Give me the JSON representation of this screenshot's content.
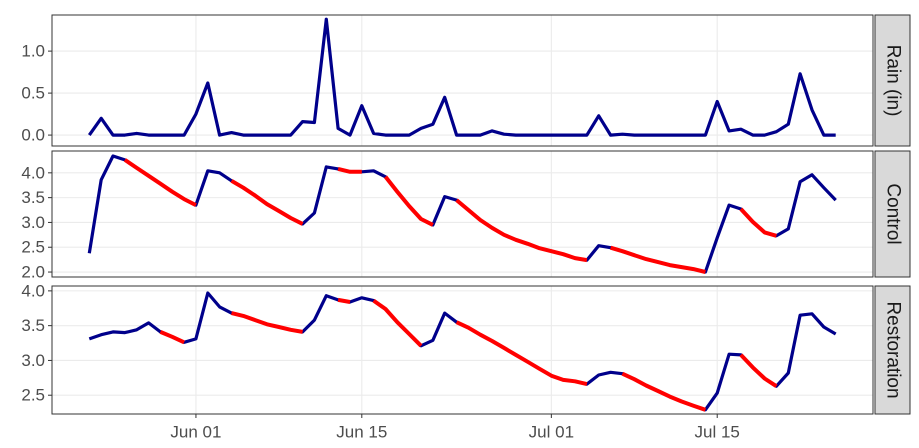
{
  "chart_data": {
    "type": "line",
    "categories": [
      "May 23",
      "May 24",
      "May 25",
      "May 26",
      "May 27",
      "May 28",
      "May 29",
      "May 30",
      "May 31",
      "Jun 01",
      "Jun 02",
      "Jun 03",
      "Jun 04",
      "Jun 05",
      "Jun 06",
      "Jun 07",
      "Jun 08",
      "Jun 09",
      "Jun 10",
      "Jun 11",
      "Jun 12",
      "Jun 13",
      "Jun 14",
      "Jun 15",
      "Jun 16",
      "Jun 17",
      "Jun 18",
      "Jun 19",
      "Jun 20",
      "Jun 21",
      "Jun 22",
      "Jun 23",
      "Jun 24",
      "Jun 25",
      "Jun 26",
      "Jun 27",
      "Jun 28",
      "Jun 29",
      "Jun 30",
      "Jul 01",
      "Jul 02",
      "Jul 03",
      "Jul 04",
      "Jul 05",
      "Jul 06",
      "Jul 07",
      "Jul 08",
      "Jul 09",
      "Jul 10",
      "Jul 11",
      "Jul 12",
      "Jul 13",
      "Jul 14",
      "Jul 15",
      "Jul 16",
      "Jul 17",
      "Jul 18",
      "Jul 19",
      "Jul 20",
      "Jul 21",
      "Jul 22",
      "Jul 23",
      "Jul 24",
      "Jul 25"
    ],
    "xticks": [
      "Jun 01",
      "Jun 15",
      "Jul 01",
      "Jul 15"
    ],
    "grid": true,
    "panels": [
      {
        "label": "Rain (in)",
        "ylim": [
          -0.13,
          1.43
        ],
        "yticks": [
          {
            "value": 0,
            "label": "0.0"
          },
          {
            "value": 0.5,
            "label": "0.5"
          },
          {
            "value": 1,
            "label": "1.0"
          }
        ],
        "series": [
          {
            "color": "#00008b",
            "values": [
              0,
              0.2,
              0,
              0,
              0.02,
              0,
              0,
              0,
              0,
              0.25,
              0.62,
              0,
              0.03,
              0,
              0,
              0,
              0,
              0,
              0.16,
              0.15,
              1.38,
              0.08,
              0,
              0.35,
              0.02,
              0,
              0,
              0,
              0.08,
              0.13,
              0.45,
              0,
              0,
              0,
              0.05,
              0.01,
              0,
              0,
              0,
              0,
              0,
              0,
              0,
              0.23,
              0,
              0.01,
              0,
              0,
              0,
              0,
              0,
              0,
              0,
              0.4,
              0.05,
              0.07,
              0,
              0,
              0.04,
              0.13,
              0.73,
              0.3,
              0,
              0
            ]
          }
        ]
      },
      {
        "label": "Control",
        "ylim": [
          1.9,
          4.44
        ],
        "yticks": [
          {
            "value": 2,
            "label": "2.0"
          },
          {
            "value": 2.5,
            "label": "2.5"
          },
          {
            "value": 3,
            "label": "3.0"
          },
          {
            "value": 3.5,
            "label": "3.5"
          },
          {
            "value": 4,
            "label": "4.0"
          }
        ],
        "series": [
          {
            "color": "#00008b",
            "values": [
              2.38,
              3.86,
              4.34,
              4.26,
              4.1,
              3.94,
              3.78,
              3.62,
              3.47,
              3.35,
              4.04,
              4.0,
              3.84,
              3.7,
              3.54,
              3.37,
              3.23,
              3.09,
              2.97,
              3.19,
              4.12,
              4.08,
              4.02,
              4.02,
              4.04,
              3.92,
              3.62,
              3.33,
              3.07,
              2.95,
              3.52,
              3.45,
              3.25,
              3.05,
              2.89,
              2.75,
              2.65,
              2.57,
              2.48,
              2.42,
              2.36,
              2.28,
              2.24,
              2.53,
              2.49,
              2.42,
              2.34,
              2.26,
              2.2,
              2.14,
              2.1,
              2.06,
              2.0,
              2.69,
              3.35,
              3.27,
              3.01,
              2.8,
              2.73,
              2.87,
              3.82,
              3.96,
              3.7,
              3.45
            ]
          },
          {
            "color": "#ff0000",
            "values": [
              null,
              null,
              null,
              4.26,
              4.1,
              3.94,
              3.78,
              3.62,
              3.47,
              3.35,
              null,
              null,
              3.84,
              3.7,
              3.54,
              3.37,
              3.23,
              3.09,
              2.97,
              null,
              null,
              4.08,
              4.02,
              4.02,
              null,
              3.92,
              3.62,
              3.33,
              3.07,
              2.95,
              null,
              3.45,
              3.25,
              3.05,
              2.89,
              2.75,
              2.65,
              2.57,
              2.48,
              2.42,
              2.36,
              2.28,
              2.24,
              null,
              2.49,
              2.42,
              2.34,
              2.26,
              2.2,
              2.14,
              2.1,
              2.06,
              2.0,
              null,
              null,
              3.27,
              3.01,
              2.8,
              2.73,
              null,
              null,
              null,
              null,
              null
            ]
          }
        ]
      },
      {
        "label": "Restoration",
        "ylim": [
          2.23,
          4.07
        ],
        "yticks": [
          {
            "value": 2.5,
            "label": "2.5"
          },
          {
            "value": 3,
            "label": "3.0"
          },
          {
            "value": 3.5,
            "label": "3.5"
          },
          {
            "value": 4,
            "label": "4.0"
          }
        ],
        "series": [
          {
            "color": "#00008b",
            "values": [
              3.31,
              3.37,
              3.41,
              3.4,
              3.44,
              3.54,
              3.41,
              3.34,
              3.26,
              3.31,
              3.97,
              3.77,
              3.68,
              3.64,
              3.58,
              3.52,
              3.48,
              3.44,
              3.41,
              3.58,
              3.93,
              3.87,
              3.84,
              3.9,
              3.86,
              3.74,
              3.55,
              3.38,
              3.21,
              3.29,
              3.68,
              3.55,
              3.47,
              3.37,
              3.28,
              3.18,
              3.08,
              2.98,
              2.88,
              2.78,
              2.72,
              2.7,
              2.66,
              2.79,
              2.83,
              2.81,
              2.73,
              2.64,
              2.56,
              2.48,
              2.41,
              2.35,
              2.29,
              2.53,
              3.09,
              3.08,
              2.9,
              2.74,
              2.63,
              2.82,
              3.65,
              3.67,
              3.48,
              3.38
            ]
          },
          {
            "color": "#ff0000",
            "values": [
              null,
              null,
              null,
              null,
              null,
              null,
              3.41,
              3.34,
              3.26,
              null,
              null,
              null,
              3.68,
              3.64,
              3.58,
              3.52,
              3.48,
              3.44,
              3.41,
              null,
              null,
              3.87,
              3.84,
              null,
              3.86,
              3.74,
              3.55,
              3.38,
              3.21,
              null,
              null,
              3.55,
              3.47,
              3.37,
              3.28,
              3.18,
              3.08,
              2.98,
              2.88,
              2.78,
              2.72,
              2.7,
              2.66,
              null,
              null,
              2.81,
              2.73,
              2.64,
              2.56,
              2.48,
              2.41,
              2.35,
              2.29,
              null,
              null,
              3.08,
              2.9,
              2.74,
              2.63,
              null,
              null,
              null,
              null,
              null
            ]
          }
        ]
      }
    ]
  }
}
